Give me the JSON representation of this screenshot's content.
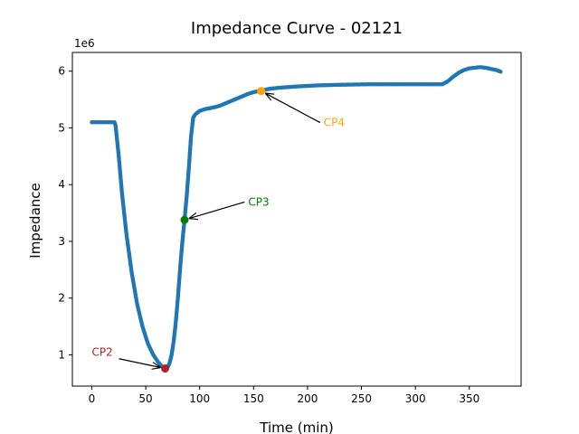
{
  "chart_data": {
    "type": "scatter",
    "title": "Impedance Curve - 02121",
    "xlabel": "Time (min)",
    "ylabel": "Impedance",
    "y_multiplier_label": "1e6",
    "xlim": [
      -18,
      398
    ],
    "ylim": [
      0.45,
      6.33
    ],
    "xticks": [
      0,
      50,
      100,
      150,
      200,
      250,
      300,
      350
    ],
    "yticks": [
      1,
      2,
      3,
      4,
      5,
      6
    ],
    "grid": false,
    "series": [
      {
        "color": "#1f77b4",
        "x": [
          0,
          21,
          22,
          25,
          28,
          32,
          37,
          42,
          47,
          52,
          57,
          62,
          66,
          68,
          70,
          72,
          74,
          76,
          78,
          80,
          82,
          84,
          86,
          88,
          90,
          92,
          94,
          96,
          98,
          100,
          105,
          110,
          115,
          120,
          125,
          130,
          135,
          140,
          145,
          150,
          155,
          158,
          165,
          175,
          190,
          210,
          230,
          260,
          290,
          310,
          325,
          330,
          335,
          340,
          345,
          350,
          355,
          360,
          365,
          370,
          375,
          379
        ],
        "y": [
          5.1,
          5.1,
          5.05,
          4.5,
          3.85,
          3.15,
          2.45,
          1.9,
          1.5,
          1.2,
          1.0,
          0.86,
          0.78,
          0.76,
          0.77,
          0.85,
          1.0,
          1.25,
          1.6,
          2.05,
          2.55,
          3.0,
          3.38,
          3.8,
          4.3,
          4.85,
          5.18,
          5.24,
          5.27,
          5.3,
          5.33,
          5.35,
          5.37,
          5.4,
          5.44,
          5.48,
          5.52,
          5.56,
          5.6,
          5.63,
          5.65,
          5.66,
          5.69,
          5.71,
          5.73,
          5.75,
          5.76,
          5.77,
          5.77,
          5.77,
          5.77,
          5.82,
          5.9,
          5.97,
          6.02,
          6.05,
          6.06,
          6.07,
          6.06,
          6.04,
          6.02,
          5.99
        ]
      }
    ],
    "points": [
      {
        "label": "CP2",
        "x": 68,
        "y": 0.76,
        "color": "#b22222",
        "text_x": 0,
        "text_y": 0.98
      },
      {
        "label": "CP3",
        "x": 86,
        "y": 3.38,
        "color": "#008000",
        "text_x": 145,
        "text_y": 3.63
      },
      {
        "label": "CP4",
        "x": 157,
        "y": 5.65,
        "color": "#ffa500",
        "text_x": 215,
        "text_y": 5.03
      }
    ]
  }
}
